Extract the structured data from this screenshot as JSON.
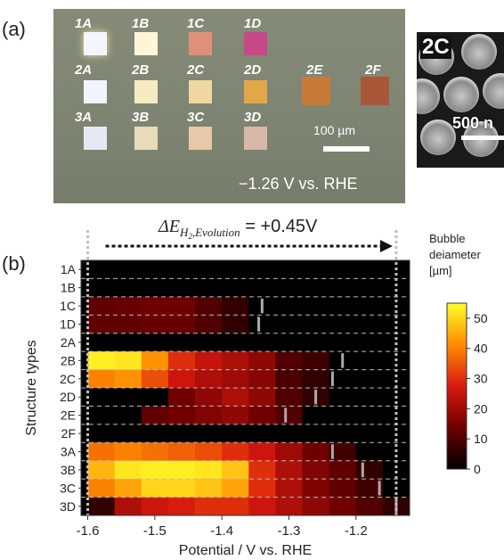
{
  "panel_a": {
    "letter": "(a)",
    "pads": [
      {
        "label": "1A"
      },
      {
        "label": "1B"
      },
      {
        "label": "1C"
      },
      {
        "label": "1D"
      },
      {
        "label": "2A"
      },
      {
        "label": "2B"
      },
      {
        "label": "2C"
      },
      {
        "label": "2D"
      },
      {
        "label": "2E"
      },
      {
        "label": "2F"
      },
      {
        "label": "3A"
      },
      {
        "label": "3B"
      },
      {
        "label": "3C"
      },
      {
        "label": "3D"
      }
    ],
    "scalebar_label": "100 µm",
    "condition": "−1.26 V vs. RHE",
    "sem_label": "2C",
    "sem_scalebar_label": "500 n"
  },
  "panel_b": {
    "letter": "(b)",
    "delta_label": "ΔE",
    "delta_sub": "H",
    "delta_sub2": "2",
    "delta_sub3": ",Evolution",
    "delta_value": " = +0.45V"
  },
  "colors": {
    "bar_line": "#aaaaaa",
    "dashed_line": "#bbbbbb"
  },
  "chart_data": {
    "type": "heatmap",
    "xlabel": "Potential / V vs. RHE",
    "ylabel": "Structure types",
    "x_ticks": [
      -1.6,
      -1.5,
      -1.4,
      -1.3,
      -1.2
    ],
    "xlim": [
      -1.61,
      -1.12
    ],
    "categories": [
      "1A",
      "1B",
      "1C",
      "1D",
      "2A",
      "2B",
      "2C",
      "2D",
      "2E",
      "2F",
      "3A",
      "3B",
      "3C",
      "3D"
    ],
    "x_bins": [
      -1.6,
      -1.56,
      -1.52,
      -1.48,
      -1.44,
      -1.4,
      -1.36,
      -1.32,
      -1.28,
      -1.24,
      -1.2,
      -1.16
    ],
    "bin_width": 0.04,
    "values": [
      [
        0,
        0,
        0,
        0,
        0,
        0,
        0,
        0,
        0,
        0,
        0,
        0
      ],
      [
        0,
        0,
        0,
        0,
        0,
        0,
        0,
        0,
        0,
        0,
        0,
        0
      ],
      [
        12,
        13,
        14,
        14,
        10,
        6,
        0,
        0,
        0,
        0,
        0,
        0
      ],
      [
        12,
        12,
        13,
        13,
        10,
        6,
        0,
        0,
        0,
        0,
        0,
        0
      ],
      [
        0,
        0,
        0,
        0,
        0,
        0,
        0,
        0,
        0,
        0,
        0,
        0
      ],
      [
        53,
        52,
        42,
        30,
        25,
        22,
        18,
        10,
        8,
        0,
        0,
        0
      ],
      [
        40,
        42,
        34,
        26,
        22,
        20,
        17,
        9,
        6,
        0,
        0,
        0
      ],
      [
        0,
        0,
        0,
        14,
        18,
        22,
        18,
        10,
        6,
        0,
        0,
        0
      ],
      [
        0,
        0,
        12,
        14,
        16,
        18,
        14,
        10,
        0,
        0,
        0,
        0
      ],
      [
        0,
        0,
        0,
        0,
        0,
        0,
        0,
        0,
        0,
        0,
        0,
        0
      ],
      [
        38,
        40,
        38,
        36,
        34,
        30,
        26,
        20,
        14,
        8,
        0,
        0
      ],
      [
        46,
        52,
        53,
        53,
        52,
        48,
        30,
        22,
        16,
        12,
        6,
        0
      ],
      [
        40,
        44,
        50,
        50,
        48,
        44,
        30,
        22,
        16,
        12,
        8,
        0
      ],
      [
        6,
        22,
        26,
        28,
        30,
        30,
        26,
        22,
        18,
        14,
        10,
        6
      ]
    ],
    "onset_potentials": [
      null,
      null,
      -1.34,
      -1.345,
      null,
      -1.22,
      -1.235,
      -1.26,
      -1.305,
      null,
      -1.235,
      -1.19,
      -1.165,
      -1.14
    ],
    "colorbar": {
      "title_lines": [
        "Bubble",
        "deiameter",
        "[µm]"
      ],
      "ticks": [
        0,
        10,
        20,
        30,
        40,
        50
      ],
      "range": [
        0,
        55
      ]
    },
    "annotation_x_range": [
      -1.6,
      -1.14
    ]
  }
}
